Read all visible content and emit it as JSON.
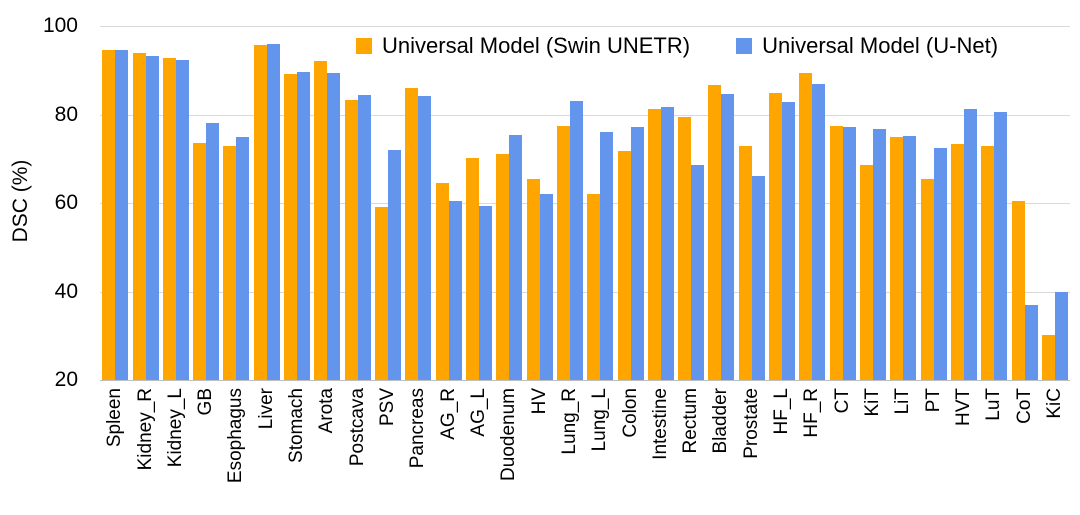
{
  "chart_data": {
    "type": "bar",
    "title": "",
    "ylabel": "DSC (%)",
    "ylim": [
      20,
      100
    ],
    "yticks": [
      100,
      80,
      60,
      40,
      20
    ],
    "grid": true,
    "legend_position": "top-center-inside",
    "categories": [
      "Spleen",
      "Kidney_R",
      "Kidney_L",
      "GB",
      "Esophagus",
      "Liver",
      "Stomach",
      "Arota",
      "Postcava",
      "PSV",
      "Pancreas",
      "AG_R",
      "AG_L",
      "Duodenum",
      "HV",
      "Lung_R",
      "Lung_L",
      "Colon",
      "Intestine",
      "Rectum",
      "Bladder",
      "Prostate",
      "HF_L",
      "HF_R",
      "CT",
      "KiT",
      "LiT",
      "PT",
      "HVT",
      "LuT",
      "CoT",
      "KiC"
    ],
    "series": [
      {
        "name": "Universal Model (Swin UNETR)",
        "color": "#FFA500",
        "values": [
          94.7,
          94.0,
          92.7,
          73.5,
          72.8,
          95.7,
          89.1,
          92.1,
          83.4,
          59.0,
          86.0,
          64.6,
          70.2,
          71.0,
          65.4,
          77.4,
          62.1,
          71.7,
          81.2,
          79.4,
          86.6,
          72.8,
          84.8,
          89.3,
          77.4,
          68.7,
          74.9,
          65.4,
          73.3,
          73.0,
          60.5,
          30.2
        ]
      },
      {
        "name": "Universal Model (U-Net)",
        "color": "#6495ED",
        "values": [
          94.6,
          93.2,
          92.4,
          78.0,
          74.9,
          95.9,
          89.7,
          89.3,
          84.5,
          71.9,
          84.3,
          60.4,
          59.4,
          75.4,
          62.1,
          83.1,
          76.0,
          77.1,
          81.8,
          68.5,
          84.6,
          66.1,
          82.8,
          86.9,
          77.1,
          76.8,
          75.1,
          72.5,
          81.2,
          80.6,
          36.9,
          39.8
        ]
      }
    ],
    "colors": {
      "gridline": "#D9D9D9",
      "axis_line": "#BFBFBF",
      "text": "#000000",
      "background": "#FFFFFF"
    }
  }
}
